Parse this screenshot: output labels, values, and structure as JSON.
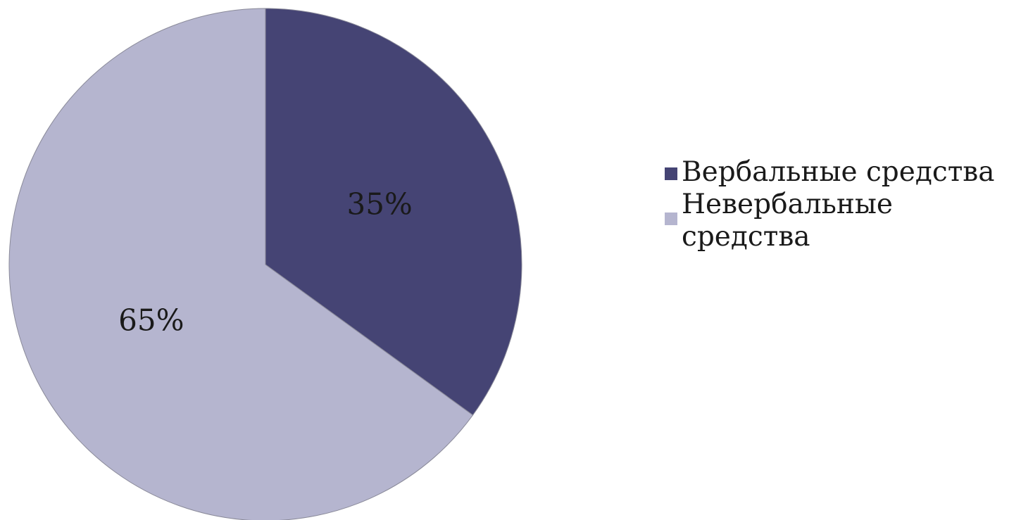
{
  "chart_data": {
    "type": "pie",
    "title": "",
    "categories": [
      "Вербальные средства",
      "Невербальные средства"
    ],
    "values": [
      35,
      65
    ],
    "labels": [
      "35%",
      "65%"
    ],
    "colors": [
      "#454474",
      "#b5b5cf"
    ],
    "legend_position": "right",
    "start_angle": "12 o'clock",
    "direction": "clockwise"
  }
}
